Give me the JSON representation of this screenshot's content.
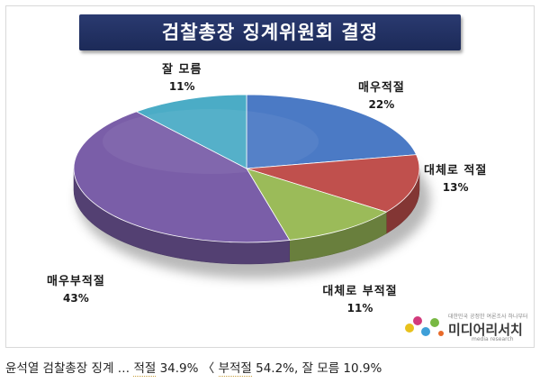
{
  "chart_data": {
    "type": "pie",
    "title": "검찰총장 징계위원회 결정",
    "slices": [
      {
        "label": "매우적절",
        "value": 22,
        "display": "22%",
        "color": "#4b7ac5"
      },
      {
        "label": "대체로 적절",
        "value": 13,
        "display": "13%",
        "color": "#c0504d"
      },
      {
        "label": "대체로 부적절",
        "value": 11,
        "display": "11%",
        "color": "#9bbb59"
      },
      {
        "label": "매우부적절",
        "value": 43,
        "display": "43%",
        "color": "#7a5ea8"
      },
      {
        "label": "잘 모름",
        "value": 11,
        "display": "11%",
        "color": "#4bacc6"
      }
    ]
  },
  "logo": {
    "name": "미디어리서치",
    "tagline": "대한민국 공정한 여론조사 하나부터",
    "subname": "media research"
  },
  "caption": {
    "prefix": "윤석열 검찰총장 징계 … ",
    "seg1": "적절",
    "mid1": " 34.9% 〈 ",
    "seg2": "부적절",
    "mid2": " 54.2%, 잘 모름 10.9%"
  }
}
